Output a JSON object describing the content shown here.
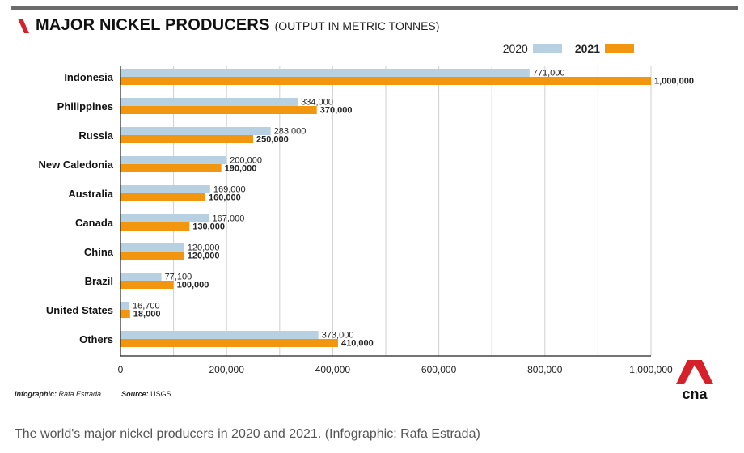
{
  "title": {
    "main": "MAJOR NICKEL PRODUCERS",
    "sub": "(OUTPUT IN METRIC TONNES)"
  },
  "legend": {
    "series_2020": "2020",
    "series_2021": "2021"
  },
  "colors": {
    "series_2020": "#b8d1e2",
    "series_2021": "#f2960f",
    "brand_red": "#d6202a",
    "grid": "#cfcfcf"
  },
  "chart_data": {
    "type": "bar",
    "orientation": "horizontal",
    "categories": [
      "Indonesia",
      "Philippines",
      "Russia",
      "New Caledonia",
      "Australia",
      "Canada",
      "China",
      "Brazil",
      "United States",
      "Others"
    ],
    "series": [
      {
        "name": "2020",
        "values": [
          771000,
          334000,
          283000,
          200000,
          169000,
          167000,
          120000,
          77100,
          16700,
          373000
        ],
        "labels": [
          "771,000",
          "334,000",
          "283,000",
          "200,000",
          "169,000",
          "167,000",
          "120,000",
          "77,100",
          "16,700",
          "373,000"
        ]
      },
      {
        "name": "2021",
        "values": [
          1000000,
          370000,
          250000,
          190000,
          160000,
          130000,
          120000,
          100000,
          18000,
          410000
        ],
        "labels": [
          "1,000,000",
          "370,000",
          "250,000",
          "190,000",
          "160,000",
          "130,000",
          "120,000",
          "100,000",
          "18,000",
          "410,000"
        ]
      }
    ],
    "xlim": [
      0,
      1000000
    ],
    "x_ticks": [
      0,
      200000,
      400000,
      600000,
      800000,
      1000000
    ],
    "x_tick_labels": [
      "0",
      "200,000",
      "400,000",
      "600,000",
      "800,000",
      "1,000,000"
    ],
    "grid_step": 100000,
    "title": "MAJOR NICKEL PRODUCERS (OUTPUT IN METRIC TONNES)",
    "xlabel": "",
    "ylabel": ""
  },
  "footer": {
    "infographic_label": "Infographic:",
    "infographic_name": "Rafa Estrada",
    "source_label": "Source:",
    "source_name": "USGS"
  },
  "logo": {
    "icon": "cna-logo-icon",
    "text": "cna"
  },
  "caption": "The world's major nickel producers in 2020 and 2021. (Infographic: Rafa Estrada)"
}
